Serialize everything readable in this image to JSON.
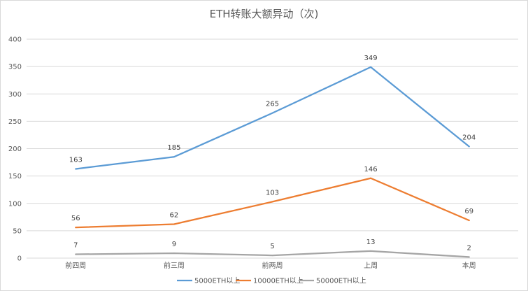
{
  "chart_data": {
    "type": "line",
    "title": "ETH转账大额异动（次)",
    "xlabel": "",
    "ylabel": "",
    "categories": [
      "前四周",
      "前三周",
      "前两周",
      "上周",
      "本周"
    ],
    "ylim": [
      0,
      400
    ],
    "yticks": [
      0,
      50,
      100,
      150,
      200,
      250,
      300,
      350,
      400
    ],
    "grid": true,
    "legend_position": "bottom",
    "series": [
      {
        "name": "5000ETH以上",
        "color": "#5b9bd5",
        "values": [
          163,
          185,
          265,
          349,
          204
        ]
      },
      {
        "name": "10000ETH以上",
        "color": "#ed7d31",
        "values": [
          56,
          62,
          103,
          146,
          69
        ]
      },
      {
        "name": "50000ETH以上",
        "color": "#a5a5a5",
        "values": [
          7,
          9,
          5,
          13,
          2
        ]
      }
    ]
  }
}
